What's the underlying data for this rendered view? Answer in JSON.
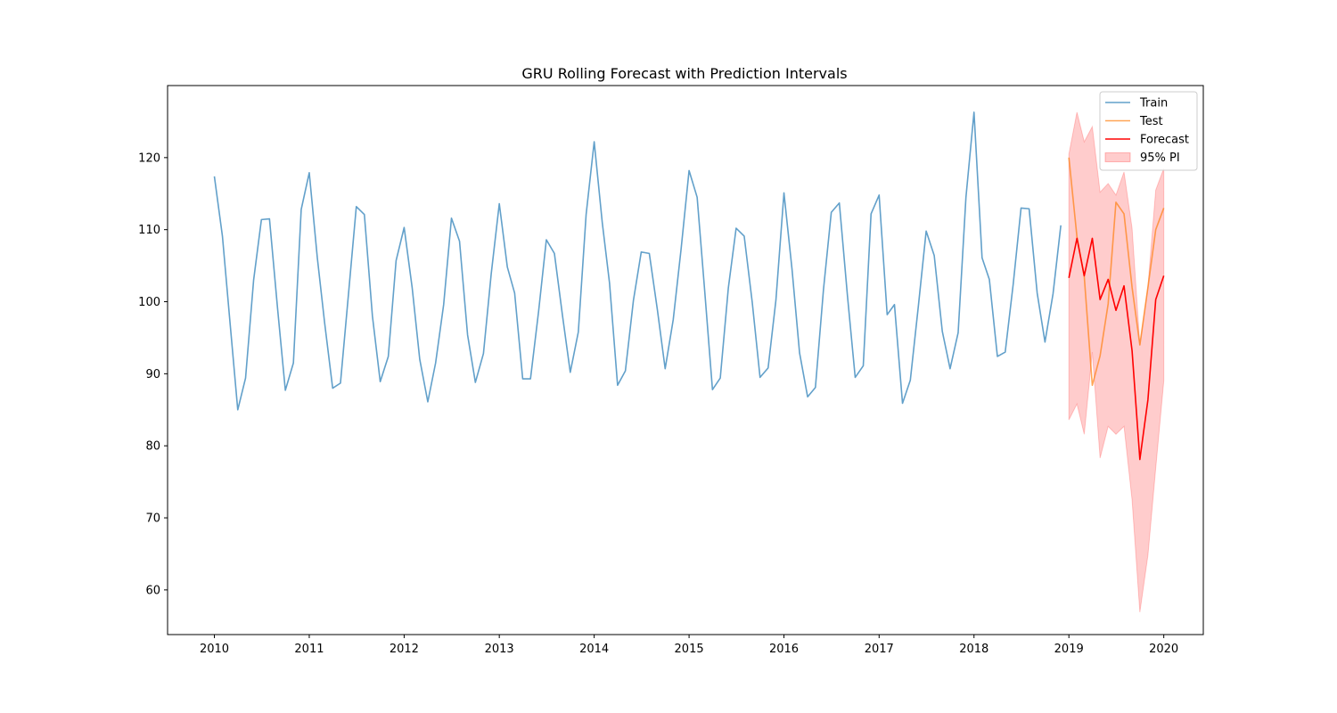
{
  "chart_data": {
    "type": "line",
    "title": "GRU Rolling Forecast with Prediction Intervals",
    "xlabel": "",
    "ylabel": "",
    "xlim": [
      "2009-07-05",
      "2020-06-01"
    ],
    "ylim": [
      53.8,
      130.0
    ],
    "x_ticks": [
      "2010",
      "2011",
      "2012",
      "2013",
      "2014",
      "2015",
      "2016",
      "2017",
      "2018",
      "2019",
      "2020"
    ],
    "y_ticks": [
      60,
      70,
      80,
      90,
      100,
      110,
      120
    ],
    "grid": false,
    "legend_position": "top-right",
    "series": [
      {
        "name": "Train",
        "color": "#1f77b4",
        "x": [
          "2010-01",
          "2010-02",
          "2010-03",
          "2010-04",
          "2010-05",
          "2010-06",
          "2010-07",
          "2010-08",
          "2010-09",
          "2010-10",
          "2010-11",
          "2010-12",
          "2011-01",
          "2011-02",
          "2011-03",
          "2011-04",
          "2011-05",
          "2011-06",
          "2011-07",
          "2011-08",
          "2011-09",
          "2011-10",
          "2011-11",
          "2011-12",
          "2012-01",
          "2012-02",
          "2012-03",
          "2012-04",
          "2012-05",
          "2012-06",
          "2012-07",
          "2012-08",
          "2012-09",
          "2012-10",
          "2012-11",
          "2012-12",
          "2013-01",
          "2013-02",
          "2013-03",
          "2013-04",
          "2013-05",
          "2013-06",
          "2013-07",
          "2013-08",
          "2013-09",
          "2013-10",
          "2013-11",
          "2013-12",
          "2014-01",
          "2014-02",
          "2014-03",
          "2014-04",
          "2014-05",
          "2014-06",
          "2014-07",
          "2014-08",
          "2014-09",
          "2014-10",
          "2014-11",
          "2014-12",
          "2015-01",
          "2015-02",
          "2015-03",
          "2015-04",
          "2015-05",
          "2015-06",
          "2015-07",
          "2015-08",
          "2015-09",
          "2015-10",
          "2015-11",
          "2015-12",
          "2016-01",
          "2016-02",
          "2016-03",
          "2016-04",
          "2016-05",
          "2016-06",
          "2016-07",
          "2016-08",
          "2016-09",
          "2016-10",
          "2016-11",
          "2016-12",
          "2017-01",
          "2017-02",
          "2017-03",
          "2017-04",
          "2017-05",
          "2017-06",
          "2017-07",
          "2017-08",
          "2017-09",
          "2017-10",
          "2017-11",
          "2017-12",
          "2018-01",
          "2018-02",
          "2018-03",
          "2018-04",
          "2018-05",
          "2018-06",
          "2018-07",
          "2018-08",
          "2018-09",
          "2018-10",
          "2018-11",
          "2018-12"
        ],
        "values": [
          117.4,
          109.1,
          97.6,
          85.0,
          89.4,
          103.0,
          111.4,
          111.5,
          99.1,
          87.7,
          91.5,
          112.8,
          117.9,
          106.1,
          97.1,
          88.0,
          88.7,
          101.1,
          113.2,
          112.1,
          98.0,
          88.9,
          92.4,
          105.7,
          110.3,
          101.9,
          92.0,
          86.1,
          91.5,
          99.6,
          111.6,
          108.4,
          95.4,
          88.8,
          92.8,
          103.9,
          113.6,
          104.8,
          101.2,
          89.3,
          89.3,
          98.6,
          108.6,
          106.7,
          98.1,
          90.2,
          95.8,
          112.1,
          122.2,
          111.0,
          102.6,
          88.4,
          90.4,
          100.2,
          106.9,
          106.7,
          98.9,
          90.7,
          97.5,
          107.2,
          118.2,
          114.5,
          102.0,
          87.8,
          89.4,
          101.9,
          110.2,
          109.1,
          99.9,
          89.5,
          90.8,
          100.2,
          115.1,
          104.5,
          92.9,
          86.8,
          88.1,
          101.7,
          112.4,
          113.7,
          100.9,
          89.5,
          91.1,
          112.2,
          114.8,
          98.2,
          99.6,
          85.9,
          89.1,
          99.4,
          109.8,
          106.4,
          95.9,
          90.7,
          95.7,
          114.5,
          126.3,
          106.1,
          103.1,
          92.4,
          93.0,
          102.5,
          113.0,
          112.9,
          101.2,
          94.4,
          101.1,
          110.6
        ]
      },
      {
        "name": "Test",
        "color": "#ff7f0e",
        "x": [
          "2019-01",
          "2019-02",
          "2019-03",
          "2019-04",
          "2019-05",
          "2019-06",
          "2019-07",
          "2019-08",
          "2019-09",
          "2019-10",
          "2019-11",
          "2019-12",
          "2020-01"
        ],
        "values": [
          120.0,
          109.0,
          103.5,
          88.4,
          92.5,
          99.7,
          113.8,
          112.2,
          102.0,
          94.0,
          102.0,
          110.0,
          113.0
        ]
      },
      {
        "name": "Forecast",
        "color": "#ff0000",
        "x": [
          "2019-01",
          "2019-02",
          "2019-03",
          "2019-04",
          "2019-05",
          "2019-06",
          "2019-07",
          "2019-08",
          "2019-09",
          "2019-10",
          "2019-11",
          "2019-12",
          "2020-01"
        ],
        "values": [
          103.3,
          108.8,
          103.6,
          108.8,
          100.3,
          103.1,
          98.8,
          102.2,
          93.2,
          78.1,
          86.4,
          100.3,
          103.6
        ]
      }
    ],
    "interval": {
      "name": "95% PI",
      "color": "#ff0000",
      "x": [
        "2019-01",
        "2019-02",
        "2019-03",
        "2019-04",
        "2019-05",
        "2019-06",
        "2019-07",
        "2019-08",
        "2019-09",
        "2019-10",
        "2019-11",
        "2019-12",
        "2020-01"
      ],
      "lower": [
        83.6,
        85.8,
        81.6,
        93.0,
        78.3,
        82.7,
        81.6,
        82.7,
        72.5,
        56.9,
        64.8,
        76.9,
        89.0
      ],
      "upper": [
        120.5,
        126.3,
        122.2,
        124.3,
        115.2,
        116.4,
        114.8,
        118.0,
        110.2,
        94.0,
        102.1,
        115.5,
        118.5
      ]
    }
  }
}
